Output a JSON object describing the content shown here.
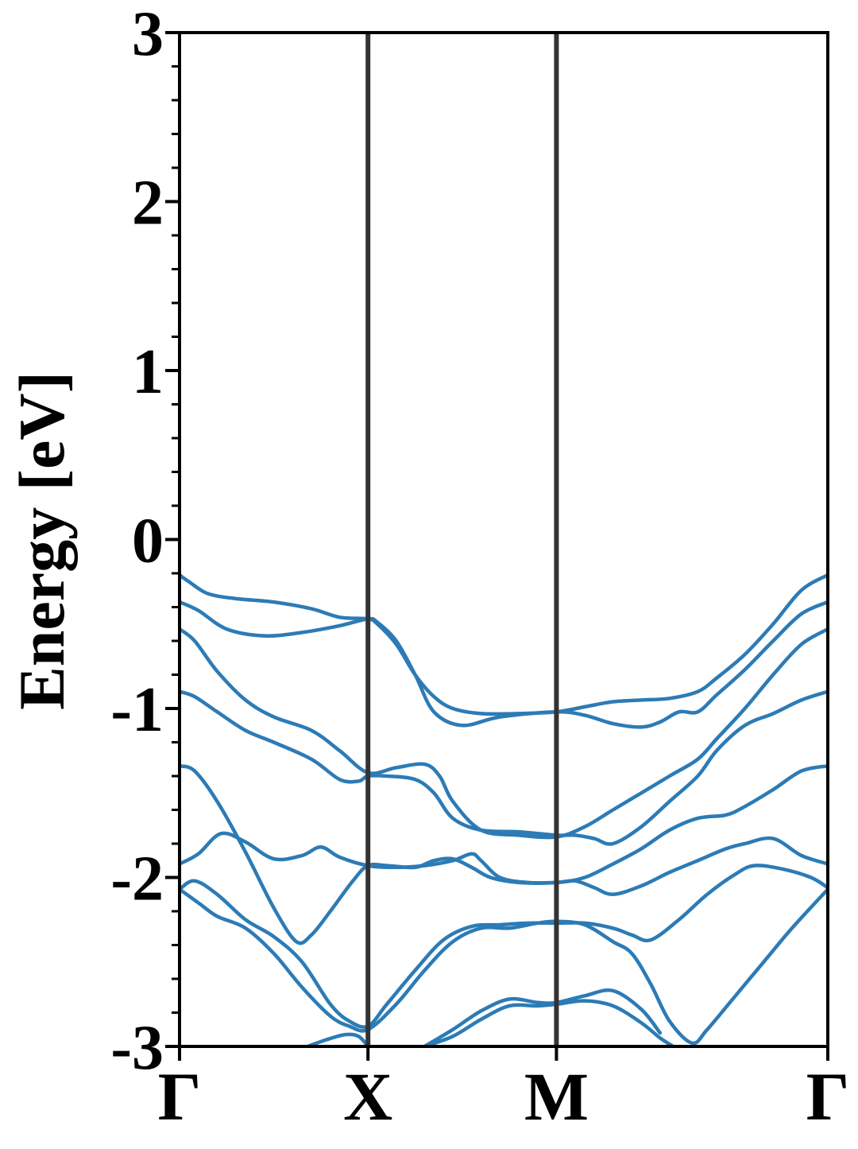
{
  "chart_data": {
    "type": "line",
    "title": "",
    "xlabel": "",
    "ylabel": "Energy [eV]",
    "ylim": [
      -3,
      3
    ],
    "xlim": [
      0,
      3.44
    ],
    "yticks": [
      3,
      2,
      1,
      0,
      -1,
      -2,
      -3
    ],
    "ytick_labels": [
      "3",
      "2",
      "1",
      "0",
      "-1",
      "-2",
      "-3"
    ],
    "yticks_minor_step": 0.2,
    "xticks": [
      0,
      1.0,
      2.0,
      3.44
    ],
    "xtick_labels": [
      "Γ",
      "X",
      "M",
      "Γ"
    ],
    "high_symmetry_lines": [
      1.0,
      2.0
    ],
    "grid": false,
    "legend": "none",
    "line_color": "#2c7bb6",
    "vline_color": "#333333",
    "series": [
      {
        "x": [
          0,
          0.05,
          0.15,
          0.3,
          0.5,
          0.7,
          0.85,
          1.0,
          1.05,
          1.15,
          1.25,
          1.35,
          1.45,
          1.6,
          1.8,
          2.0,
          2.15,
          2.3,
          2.45,
          2.6,
          2.75,
          2.85,
          3.0,
          3.15,
          3.3,
          3.44
        ],
        "y": [
          -0.21,
          -0.25,
          -0.32,
          -0.35,
          -0.37,
          -0.41,
          -0.46,
          -0.47,
          -0.5,
          -0.62,
          -0.8,
          -0.93,
          -1.0,
          -1.03,
          -1.03,
          -1.02,
          -0.99,
          -0.96,
          -0.95,
          -0.94,
          -0.9,
          -0.82,
          -0.68,
          -0.5,
          -0.3,
          -0.21
        ]
      },
      {
        "x": [
          0,
          0.1,
          0.25,
          0.45,
          0.65,
          0.85,
          1.0,
          1.05,
          1.15,
          1.25,
          1.35,
          1.5,
          1.7,
          2.0,
          2.15,
          2.3,
          2.45,
          2.55,
          2.65,
          2.75,
          2.85,
          3.0,
          3.15,
          3.3,
          3.44
        ],
        "y": [
          -0.37,
          -0.42,
          -0.53,
          -0.57,
          -0.55,
          -0.51,
          -0.47,
          -0.49,
          -0.6,
          -0.8,
          -1.02,
          -1.1,
          -1.05,
          -1.02,
          -1.04,
          -1.09,
          -1.11,
          -1.08,
          -1.02,
          -1.02,
          -0.92,
          -0.77,
          -0.6,
          -0.44,
          -0.37
        ]
      },
      {
        "x": [
          0,
          0.08,
          0.2,
          0.35,
          0.5,
          0.7,
          0.85,
          1.0,
          1.15,
          1.3,
          1.38,
          1.45,
          1.6,
          1.8,
          2.0,
          2.15,
          2.3,
          2.45,
          2.6,
          2.75,
          2.85,
          3.0,
          3.15,
          3.3,
          3.44
        ],
        "y": [
          -0.53,
          -0.6,
          -0.78,
          -0.95,
          -1.05,
          -1.13,
          -1.25,
          -1.38,
          -1.35,
          -1.33,
          -1.4,
          -1.55,
          -1.72,
          -1.75,
          -1.76,
          -1.7,
          -1.6,
          -1.5,
          -1.4,
          -1.3,
          -1.18,
          -1.0,
          -0.8,
          -0.62,
          -0.53
        ]
      },
      {
        "x": [
          0,
          0.08,
          0.2,
          0.35,
          0.5,
          0.7,
          0.85,
          0.95,
          1.0,
          1.1,
          1.25,
          1.35,
          1.45,
          1.6,
          1.8,
          2.0,
          2.1,
          2.2,
          2.3,
          2.45,
          2.6,
          2.75,
          2.85,
          3.0,
          3.15,
          3.3,
          3.44
        ],
        "y": [
          -0.9,
          -0.93,
          -1.02,
          -1.13,
          -1.2,
          -1.3,
          -1.42,
          -1.43,
          -1.4,
          -1.4,
          -1.42,
          -1.5,
          -1.65,
          -1.72,
          -1.73,
          -1.75,
          -1.75,
          -1.77,
          -1.8,
          -1.7,
          -1.55,
          -1.4,
          -1.25,
          -1.1,
          -1.03,
          -0.95,
          -0.9
        ]
      },
      {
        "x": [
          0,
          0.08,
          0.2,
          0.35,
          0.5,
          0.62,
          0.7,
          0.8,
          0.92,
          1.0,
          1.1,
          1.25,
          1.35,
          1.45,
          1.55,
          1.65,
          1.8,
          2.0,
          2.15,
          2.3,
          2.45,
          2.6,
          2.75,
          2.9,
          3.0,
          3.15,
          3.3,
          3.44
        ],
        "y": [
          -1.34,
          -1.37,
          -1.55,
          -1.85,
          -2.18,
          -2.38,
          -2.34,
          -2.2,
          -2.02,
          -1.93,
          -1.93,
          -1.94,
          -1.9,
          -1.89,
          -1.94,
          -2.0,
          -2.03,
          -2.03,
          -2.0,
          -1.92,
          -1.83,
          -1.72,
          -1.65,
          -1.63,
          -1.58,
          -1.48,
          -1.37,
          -1.34
        ]
      },
      {
        "x": [
          0,
          0.1,
          0.22,
          0.35,
          0.5,
          0.65,
          0.75,
          0.85,
          1.0,
          1.15,
          1.3,
          1.45,
          1.55,
          1.6,
          1.7,
          1.85,
          2.0,
          2.1,
          2.2,
          2.3,
          2.45,
          2.6,
          2.75,
          2.9,
          3.0,
          3.15,
          3.3,
          3.44
        ],
        "y": [
          -1.92,
          -1.86,
          -1.74,
          -1.79,
          -1.89,
          -1.87,
          -1.82,
          -1.88,
          -1.93,
          -1.94,
          -1.93,
          -1.9,
          -1.86,
          -1.9,
          -2.0,
          -2.03,
          -2.03,
          -2.02,
          -2.06,
          -2.1,
          -2.05,
          -1.97,
          -1.9,
          -1.83,
          -1.8,
          -1.77,
          -1.87,
          -1.92
        ]
      },
      {
        "x": [
          0,
          0.08,
          0.2,
          0.35,
          0.5,
          0.65,
          0.8,
          0.9,
          1.0,
          1.1,
          1.25,
          1.4,
          1.55,
          1.7,
          1.85,
          2.0,
          2.15,
          2.3,
          2.4,
          2.5,
          2.65,
          2.8,
          2.95,
          3.05,
          3.2,
          3.35,
          3.44
        ],
        "y": [
          -2.07,
          -2.02,
          -2.1,
          -2.25,
          -2.35,
          -2.5,
          -2.75,
          -2.85,
          -2.88,
          -2.75,
          -2.55,
          -2.37,
          -2.29,
          -2.28,
          -2.27,
          -2.27,
          -2.27,
          -2.3,
          -2.34,
          -2.37,
          -2.25,
          -2.1,
          -1.98,
          -1.93,
          -1.95,
          -2.0,
          -2.06
        ]
      },
      {
        "x": [
          0,
          0.1,
          0.2,
          0.35,
          0.5,
          0.65,
          0.8,
          0.9,
          1.0,
          1.15,
          1.3,
          1.45,
          1.6,
          1.75,
          1.9,
          2.0,
          2.15,
          2.3,
          2.4,
          2.5,
          2.6,
          2.72,
          2.8,
          2.95,
          3.1,
          3.25,
          3.44
        ],
        "y": [
          -2.07,
          -2.15,
          -2.23,
          -2.3,
          -2.45,
          -2.65,
          -2.82,
          -2.88,
          -2.9,
          -2.75,
          -2.55,
          -2.38,
          -2.3,
          -2.3,
          -2.27,
          -2.26,
          -2.28,
          -2.38,
          -2.45,
          -2.63,
          -2.85,
          -2.98,
          -2.9,
          -2.7,
          -2.5,
          -2.3,
          -2.07
        ]
      },
      {
        "x": [
          1.3,
          1.45,
          1.6,
          1.75,
          1.9,
          2.0,
          2.15,
          2.3,
          2.45,
          2.55
        ],
        "y": [
          -3.0,
          -2.9,
          -2.79,
          -2.72,
          -2.74,
          -2.74,
          -2.7,
          -2.67,
          -2.78,
          -2.92
        ]
      },
      {
        "x": [
          1.3,
          1.45,
          1.6,
          1.75,
          1.9,
          2.0,
          2.15,
          2.3,
          2.45,
          2.55,
          2.62
        ],
        "y": [
          -3.0,
          -2.94,
          -2.84,
          -2.76,
          -2.76,
          -2.75,
          -2.73,
          -2.76,
          -2.86,
          -2.95,
          -3.0
        ]
      },
      {
        "x": [
          0.68,
          0.78,
          0.88,
          0.95,
          1.0
        ],
        "y": [
          -3.0,
          -2.96,
          -2.93,
          -2.94,
          -3.0
        ]
      }
    ]
  }
}
